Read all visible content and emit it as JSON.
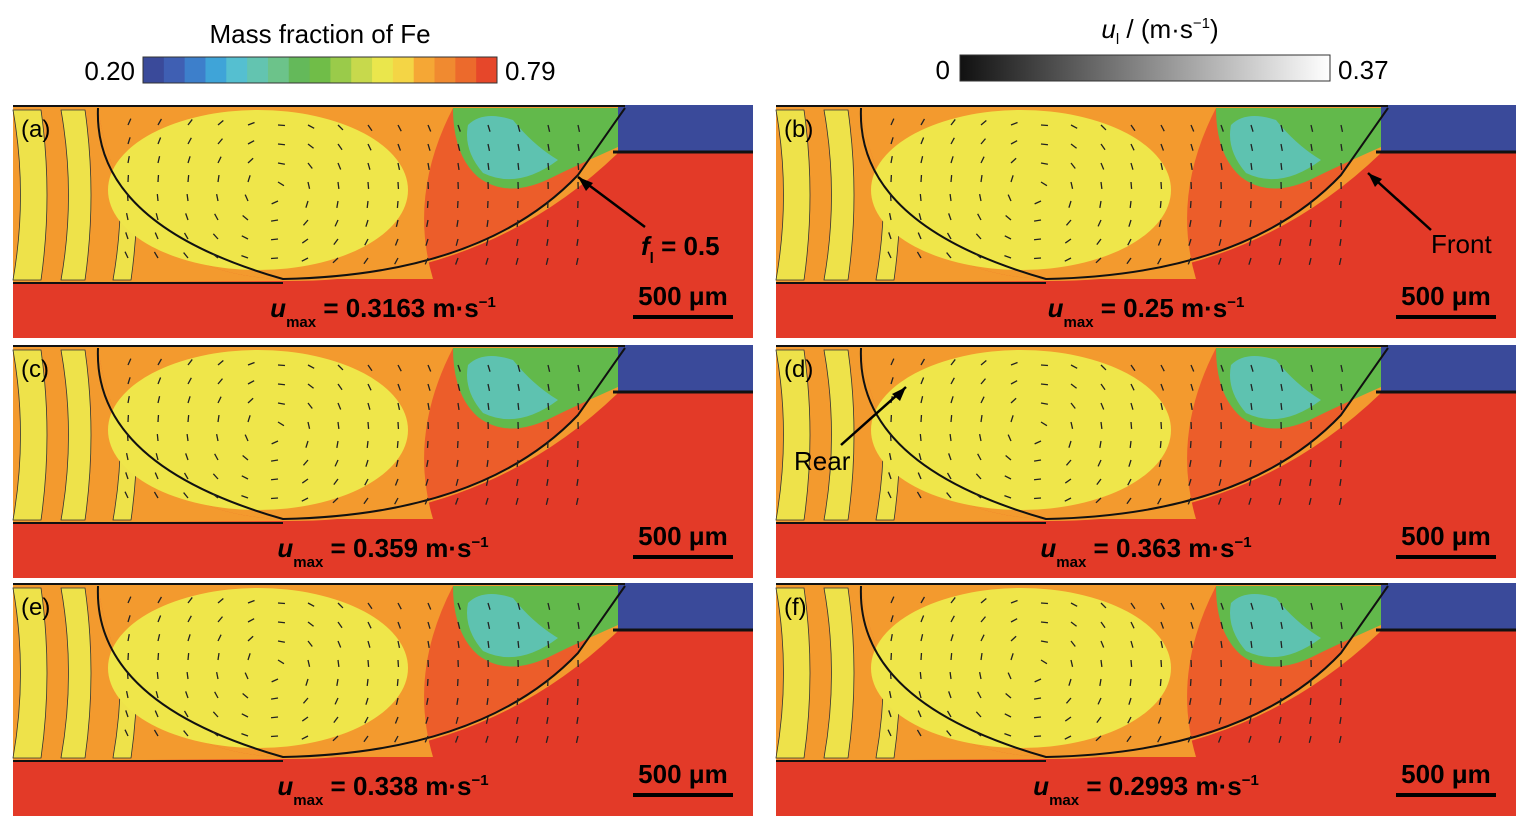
{
  "colorbars": {
    "fe": {
      "title": "Mass fraction of Fe",
      "min": "0.20",
      "max": "0.79"
    },
    "velocity": {
      "symbol": "u",
      "subscript": "l",
      "unit": " / (m·s",
      "superscript": "−1",
      "close": ")",
      "min": "0",
      "max": "0.37"
    }
  },
  "panels": [
    {
      "label": "(a)",
      "u_symbol": "u",
      "u_subscript": "max",
      "u_value": " = 0.3163 m·s",
      "u_superscript": "−1",
      "scale": "500 μm",
      "annotation": {
        "symbol": "f",
        "subscript": "l",
        "text": " = 0.5"
      }
    },
    {
      "label": "(b)",
      "u_symbol": "u",
      "u_subscript": "max",
      "u_value": " = 0.25  m·s",
      "u_superscript": "−1",
      "scale": "500 μm",
      "annotation": {
        "text": "Front"
      }
    },
    {
      "label": "(c)",
      "u_symbol": "u",
      "u_subscript": "max",
      "u_value": " = 0.359 m·s",
      "u_superscript": "−1",
      "scale": "500 μm"
    },
    {
      "label": "(d)",
      "u_symbol": "u",
      "u_subscript": "max",
      "u_value": " = 0.363  m·s",
      "u_superscript": "−1",
      "scale": "500 μm",
      "annotation": {
        "text": "Rear"
      }
    },
    {
      "label": "(e)",
      "u_symbol": "u",
      "u_subscript": "max",
      "u_value": " = 0.338 m·s",
      "u_superscript": "−1",
      "scale": "500 μm"
    },
    {
      "label": "(f)",
      "u_symbol": "u",
      "u_subscript": "max",
      "u_value": " = 0.2993  m·s",
      "u_superscript": "−1",
      "scale": "500 μm"
    }
  ]
}
